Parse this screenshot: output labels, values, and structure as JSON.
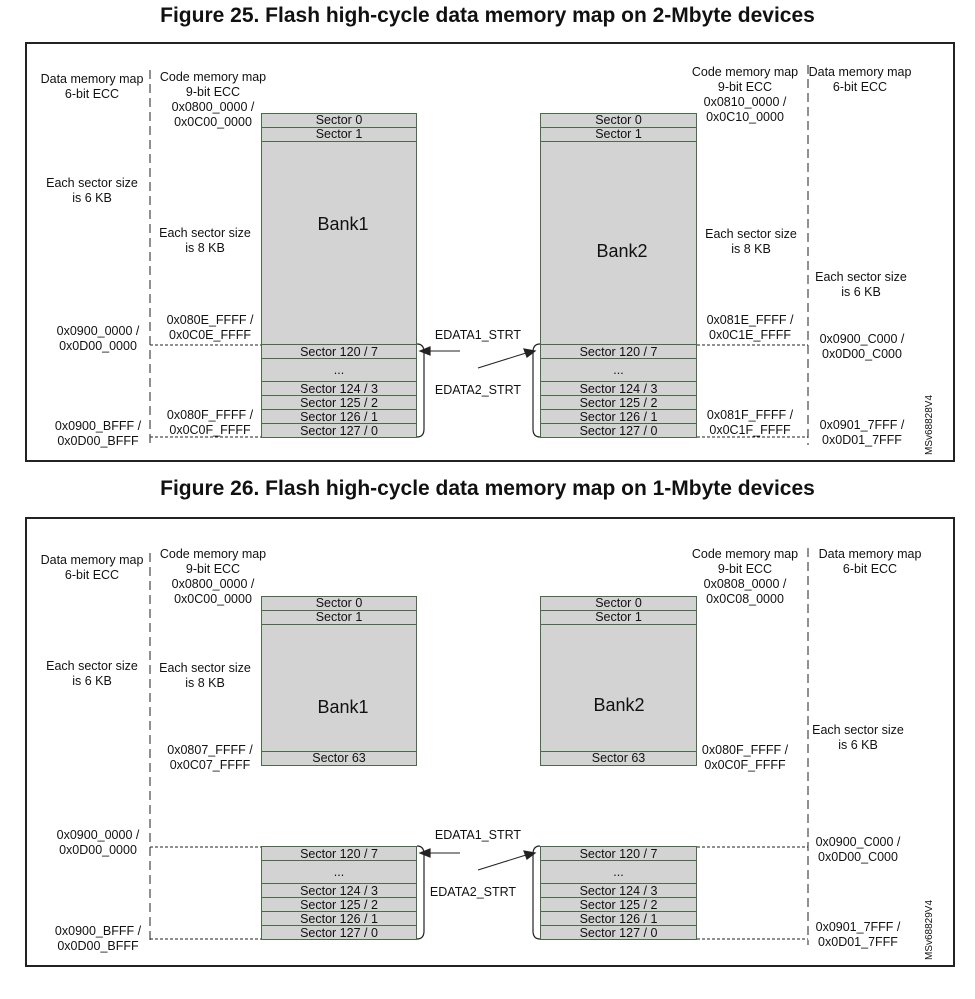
{
  "figures": [
    {
      "title": "Figure 25. Flash high-cycle data memory map on 2-Mbyte devices",
      "left_data_map": "Data memory map\n6-bit ECC",
      "left_code_map": "Code memory map\n9-bit ECC\n0x0800_0000 /\n0x0C00_0000",
      "right_code_map": "Code memory map\n9-bit ECC\n0x0810_0000 /\n0x0C10_0000",
      "right_data_map": "Data  memory map\n6-bit ECC",
      "left_sector_size_6": "Each sector size\nis 6 KB",
      "left_sector_size_8": "Each sector size\nis 8 KB",
      "right_sector_size_8": "Each sector size\nis 8 KB",
      "right_sector_size_6": "Each sector size\nis 6 KB",
      "bank1": "Bank1",
      "bank2": "Bank2",
      "bank1_end_addr": "0x080E_FFFF /\n0x0C0E_FFFF",
      "bank2_end_addr": "0x081E_FFFF /\n0x0C1E_FFFF",
      "bank1_last_addr": "0x080F_FFFF /\n0x0C0F_FFFF",
      "bank2_last_addr": "0x081F_FFFF /\n0x0C1F_FFFF",
      "data1_start": "0x0900_0000 /\n0x0D00_0000",
      "data1_end": "0x0900_BFFF /\n0x0D00_BFFF",
      "data2_start": "0x0900_C000 /\n0x0D00_C000",
      "data2_end": "0x0901_7FFF /\n0x0D01_7FFF",
      "edata1": "EDATA1_STRT",
      "edata2": "EDATA2_STRT",
      "top_sectors": [
        "Sector 0",
        "Sector 1"
      ],
      "mid_sector": "",
      "high_cycle_sectors": [
        "Sector 120 / 7",
        "...",
        "Sector 124 / 3",
        "Sector 125 / 2",
        "Sector 126 / 1",
        "Sector 127 / 0"
      ],
      "ref": "MSv68828V4"
    },
    {
      "title": "Figure 26. Flash high-cycle data memory map on 1-Mbyte devices",
      "left_data_map": "Data memory map\n6-bit ECC",
      "left_code_map": "Code memory map\n9-bit ECC\n0x0800_0000 /\n0x0C00_0000",
      "right_code_map": "Code memory map\n9-bit ECC\n0x0808_0000 /\n0x0C08_0000",
      "right_data_map": "Data  memory map\n6-bit ECC",
      "left_sector_size_6": "Each sector size\nis 6 KB",
      "left_sector_size_8": "Each sector size\nis 8 KB",
      "right_sector_size_6": "Each sector size\nis 6 KB",
      "bank1": "Bank1",
      "bank2": "Bank2",
      "bank1_end_addr": "0x0807_FFFF /\n0x0C07_FFFF",
      "bank2_end_addr": "0x080F_FFFF /\n0x0C0F_FFFF",
      "data1_start": "0x0900_0000 /\n0x0D00_0000",
      "data1_end": "0x0900_BFFF /\n0x0D00_BFFF",
      "data2_start": "0x0900_C000 /\n0x0D00_C000",
      "data2_end": "0x0901_7FFF /\n0x0D01_7FFF",
      "edata1": "EDATA1_STRT",
      "edata2": "EDATA2_STRT",
      "top_sectors": [
        "Sector 0",
        "Sector 1"
      ],
      "mid_sector": "Sector 63",
      "high_cycle_sectors": [
        "Sector 120 / 7",
        "...",
        "Sector 124 / 3",
        "Sector 125 / 2",
        "Sector 126 / 1",
        "Sector 127 / 0"
      ],
      "ref": "MSv68829V4"
    }
  ]
}
